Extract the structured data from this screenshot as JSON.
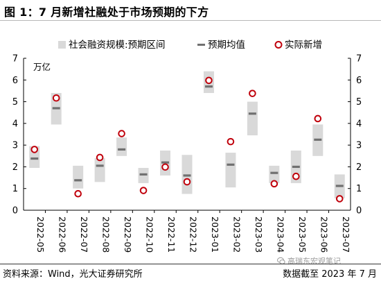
{
  "figure": {
    "title": "图 1：7 月新增社融处于市场预期的下方",
    "source": "资料来源：Wind，光大证券研究所",
    "date_note": "数据截至 2023 年 7 月",
    "watermark": "高瑞东宏观笔记"
  },
  "colors": {
    "range_fill": "#d9d9d9",
    "median": "#707070",
    "actual": "#c0000b",
    "axis": "#000000"
  },
  "icons": {
    "watermark": "wechat-icon"
  },
  "chart_data": {
    "type": "range-dot",
    "unit_label": "万亿",
    "legend": [
      {
        "key": "range",
        "label": "社会融资规模:预期区间"
      },
      {
        "key": "median",
        "label": "预期均值"
      },
      {
        "key": "actual",
        "label": "实际新增"
      }
    ],
    "categories": [
      "2022-05",
      "2022-06",
      "2022-07",
      "2022-08",
      "2022-09",
      "2022-10",
      "2022-11",
      "2022-12",
      "2023-01",
      "2023-02",
      "2023-03",
      "2023-04",
      "2023-05",
      "2023-06",
      "2023-07"
    ],
    "range_low": [
      1.95,
      3.95,
      1.0,
      1.3,
      2.5,
      1.25,
      1.6,
      0.75,
      5.4,
      1.05,
      3.45,
      1.25,
      1.25,
      2.5,
      0.55
    ],
    "range_high": [
      2.95,
      5.4,
      2.05,
      2.4,
      3.35,
      1.95,
      2.75,
      2.55,
      6.4,
      2.65,
      5.0,
      2.05,
      2.75,
      3.95,
      1.65
    ],
    "median": [
      2.38,
      4.7,
      1.38,
      2.05,
      2.8,
      1.65,
      2.2,
      1.6,
      5.7,
      2.1,
      4.45,
      1.72,
      2.0,
      3.25,
      1.12
    ],
    "actual": [
      2.8,
      5.17,
      0.76,
      2.43,
      3.53,
      0.91,
      1.99,
      1.31,
      5.98,
      3.16,
      5.38,
      1.22,
      1.56,
      4.22,
      0.53
    ],
    "ylim": [
      0,
      7
    ],
    "yticks": [
      "0",
      "1",
      "2",
      "3",
      "4",
      "5",
      "6",
      "7"
    ],
    "dual_axis": true,
    "grid": false,
    "legend_position": "top"
  }
}
